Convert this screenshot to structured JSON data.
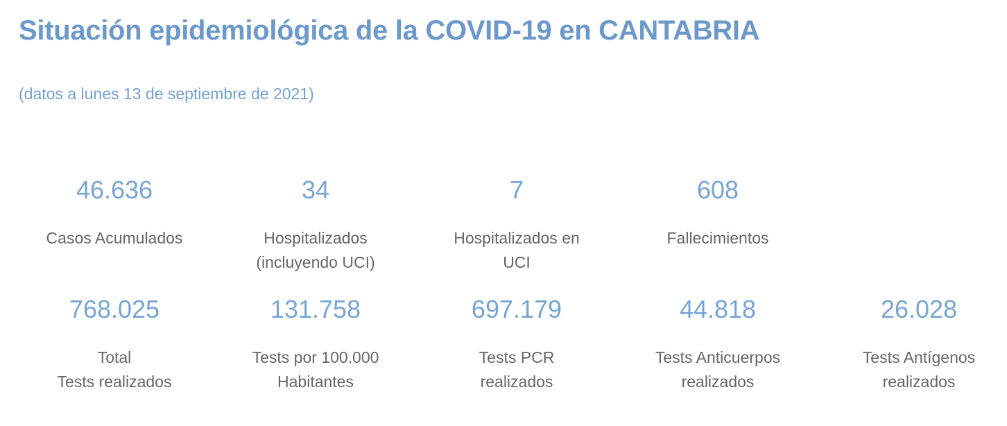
{
  "chart_data": {
    "type": "table",
    "title": "Situación epidemiológica de la COVID-19 en CANTABRIA",
    "subtitle": "(datos a lunes 13 de septiembre de 2021)",
    "layout": "kpi-card-dashboard, 2 rows (4 cards + 5 cards), white background, no axes, no grid",
    "rows": [
      [
        {
          "label": "Casos Acumulados",
          "value": 46636,
          "display": "46.636",
          "label_lines": [
            "Casos Acumulados"
          ]
        },
        {
          "label": "Hospitalizados (incluyendo UCI)",
          "value": 34,
          "display": "34",
          "label_lines": [
            "Hospitalizados",
            "(incluyendo UCI)"
          ]
        },
        {
          "label": "Hospitalizados en UCI",
          "value": 7,
          "display": "7",
          "label_lines": [
            "Hospitalizados en",
            "UCI"
          ]
        },
        {
          "label": "Fallecimientos",
          "value": 608,
          "display": "608",
          "label_lines": [
            "Fallecimientos"
          ]
        }
      ],
      [
        {
          "label": "Total Tests realizados",
          "value": 768025,
          "display": "768.025",
          "label_lines": [
            "Total",
            "Tests realizados"
          ]
        },
        {
          "label": "Tests por 100.000 Habitantes",
          "value": 131758,
          "display": "131.758",
          "label_lines": [
            "Tests por 100.000",
            "Habitantes"
          ]
        },
        {
          "label": "Tests PCR realizados",
          "value": 697179,
          "display": "697.179",
          "label_lines": [
            "Tests PCR",
            "realizados"
          ]
        },
        {
          "label": "Tests Anticuerpos realizados",
          "value": 44818,
          "display": "44.818",
          "label_lines": [
            "Tests Anticuerpos",
            "realizados"
          ]
        },
        {
          "label": "Tests Antígenos realizados",
          "value": 26028,
          "display": "26.028",
          "label_lines": [
            "Tests Antígenos",
            "realizados"
          ]
        }
      ]
    ]
  },
  "colors": {
    "title_blue": "#6C99C9",
    "subtitle_blue": "#759FCF",
    "value_blue": "#77A4D4",
    "label_gray": "#666666",
    "background": "#FFFFFF"
  }
}
